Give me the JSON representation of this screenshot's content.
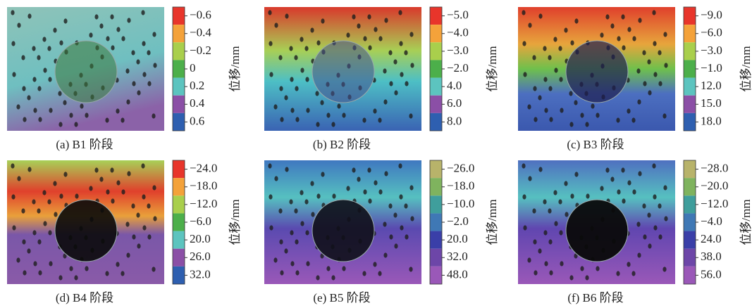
{
  "panels": [
    {
      "caption": "(a) B1 阶段",
      "colorbar_label": "位移/mm",
      "ticks": [
        "−0.6",
        "−0.4",
        "−0.2",
        "0",
        "0.2",
        "0.4",
        "0.6"
      ],
      "colors": [
        "#e8352b",
        "#f4a23a",
        "#a9cf4c",
        "#4caf4a",
        "#5cc4bf",
        "#8b4fa6",
        "#2e5fb0"
      ]
    },
    {
      "caption": "(b) B2 阶段",
      "colorbar_label": "位移/mm",
      "ticks": [
        "−5.0",
        "−4.0",
        "−3.0",
        "−2.0",
        "4.0",
        "6.0",
        "8.0"
      ],
      "colors": [
        "#e8352b",
        "#f4a23a",
        "#a9cf4c",
        "#4caf4a",
        "#5cc4bf",
        "#8b4fa6",
        "#2e5fb0"
      ]
    },
    {
      "caption": "(c)  B3 阶段",
      "colorbar_label": "位移/mm",
      "ticks": [
        "−9.0",
        "−6.0",
        "−3.0",
        "−1.0",
        "12.0",
        "15.0",
        "18.0"
      ],
      "colors": [
        "#e8352b",
        "#f4a23a",
        "#a9cf4c",
        "#4caf4a",
        "#5cc4bf",
        "#8b4fa6",
        "#2e5fb0"
      ]
    },
    {
      "caption": "(d) B4 阶段",
      "colorbar_label": "位移/mm",
      "ticks": [
        "−24.0",
        "−18.0",
        "−12.0",
        "−6.0",
        "20.0",
        "26.0",
        "32.0"
      ],
      "colors": [
        "#e8352b",
        "#f4a23a",
        "#a9cf4c",
        "#4caf4a",
        "#5cc4bf",
        "#8b4fa6",
        "#2e5fb0"
      ]
    },
    {
      "caption": "(e) B5 阶段",
      "colorbar_label": "位移/mm",
      "ticks": [
        "−26.0",
        "−18.0",
        "−10.0",
        "−2.0",
        "20.0",
        "32.0",
        "48.0"
      ],
      "colors": [
        "#b8b36a",
        "#7fb35e",
        "#3f9e9c",
        "#3f78b5",
        "#3a3fa8",
        "#6d46a8",
        "#9a58b8"
      ]
    },
    {
      "caption": "(f)  B6 阶段",
      "colorbar_label": "位移/mm",
      "ticks": [
        "−28.0",
        "−20.0",
        "−12.0",
        "−4.0",
        "24.0",
        "38.0",
        "56.0"
      ],
      "colors": [
        "#b8b36a",
        "#7fb35e",
        "#3f9e9c",
        "#3f78b5",
        "#3a3fa8",
        "#6d46a8",
        "#9a58b8"
      ]
    }
  ]
}
